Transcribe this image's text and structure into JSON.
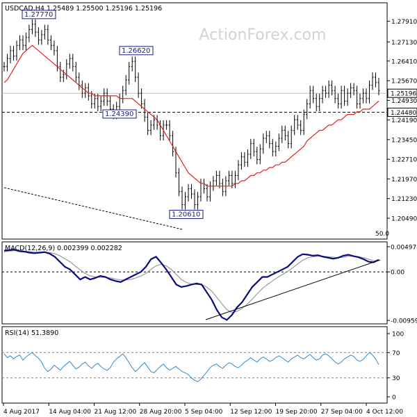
{
  "watermark": "ActionForex.com",
  "colors": {
    "price": "#000000",
    "ma": "#e02020",
    "macd": "#0a0a80",
    "signal": "#9a9a9a",
    "rsi": "#2c8ad8",
    "dashed": "#000000",
    "frame": "#000000",
    "watermark": "#d2d2d2"
  },
  "chart_data": [
    {
      "type": "line",
      "title": "USDCAD,H4 1.25489 1.25500 1.25196 1.25196",
      "ylim": [
        1.2049,
        1.2829
      ],
      "y_ticks": [
        "1.27910",
        "1.27130",
        "1.26410",
        "1.25670",
        "1.24930",
        "1.24190",
        "1.23450",
        "1.22710",
        "1.21970",
        "1.21230",
        "1.20490"
      ],
      "x_tick_labels": [
        "4 Aug 2017",
        "14 Aug 04:00",
        "21 Aug 12:00",
        "28 Aug 20:00",
        "5 Sep 04:00",
        "12 Sep 12:00",
        "19 Sep 20:00",
        "27 Sep 04:00",
        "4 Oct 12:00"
      ],
      "series": [
        {
          "values": [
            1.262,
            1.265,
            1.268,
            1.266,
            1.27,
            1.272,
            1.27,
            1.273,
            1.276,
            1.278,
            1.275,
            1.272,
            1.274,
            1.276,
            1.272,
            1.27,
            1.268,
            1.262,
            1.258,
            1.259,
            1.263,
            1.265,
            1.262,
            1.258,
            1.255,
            1.252,
            1.254,
            1.251,
            1.248,
            1.25,
            1.247,
            1.249,
            1.252,
            1.249,
            1.246,
            1.244,
            1.247,
            1.25,
            1.253,
            1.257,
            1.262,
            1.264,
            1.258,
            1.252,
            1.248,
            1.243,
            1.238,
            1.24,
            1.242,
            1.24,
            1.236,
            1.24,
            1.24,
            1.236,
            1.23,
            1.222,
            1.215,
            1.21,
            1.213,
            1.216,
            1.214,
            1.21,
            1.213,
            1.218,
            1.216,
            1.213,
            1.217,
            1.219,
            1.221,
            1.218,
            1.215,
            1.219,
            1.221,
            1.218,
            1.221,
            1.225,
            1.228,
            1.226,
            1.229,
            1.233,
            1.23,
            1.227,
            1.231,
            1.235,
            1.236,
            1.233,
            1.23,
            1.232,
            1.235,
            1.238,
            1.236,
            1.233,
            1.238,
            1.242,
            1.24,
            1.238,
            1.244,
            1.248,
            1.253,
            1.25,
            1.247,
            1.25,
            1.253,
            1.252,
            1.255,
            1.253,
            1.25,
            1.248,
            1.253,
            1.249,
            1.252,
            1.254,
            1.253,
            1.248,
            1.25,
            1.252,
            1.25,
            1.255,
            1.258,
            1.256,
            1.253
          ]
        },
        {
          "name": "50.0",
          "values": [
            1.256,
            1.257,
            1.259,
            1.261,
            1.263,
            1.265,
            1.267,
            1.268,
            1.269,
            1.27,
            1.269,
            1.268,
            1.267,
            1.266,
            1.265,
            1.264,
            1.263,
            1.262,
            1.261,
            1.26,
            1.259,
            1.258,
            1.257,
            1.256,
            1.255,
            1.254,
            1.253,
            1.252,
            1.252,
            1.251,
            1.251,
            1.251,
            1.251,
            1.251,
            1.251,
            1.251,
            1.251,
            1.25,
            1.25,
            1.25,
            1.25,
            1.25,
            1.249,
            1.248,
            1.247,
            1.246,
            1.245,
            1.244,
            1.243,
            1.242,
            1.24,
            1.238,
            1.236,
            1.234,
            1.232,
            1.23,
            1.228,
            1.226,
            1.224,
            1.222,
            1.221,
            1.22,
            1.219,
            1.218,
            1.218,
            1.217,
            1.217,
            1.217,
            1.217,
            1.217,
            1.217,
            1.217,
            1.217,
            1.217,
            1.218,
            1.218,
            1.219,
            1.219,
            1.22,
            1.221,
            1.221,
            1.222,
            1.222,
            1.223,
            1.223,
            1.224,
            1.224,
            1.225,
            1.225,
            1.226,
            1.226,
            1.227,
            1.228,
            1.229,
            1.23,
            1.231,
            1.232,
            1.234,
            1.235,
            1.236,
            1.237,
            1.238,
            1.238,
            1.239,
            1.24,
            1.24,
            1.241,
            1.242,
            1.242,
            1.243,
            1.244,
            1.244,
            1.244,
            1.245,
            1.245,
            1.246,
            1.246,
            1.246,
            1.247,
            1.248,
            1.249
          ]
        }
      ],
      "annotations": [
        {
          "label": "1.27770",
          "value": 1.2777
        },
        {
          "label": "1.26620",
          "value": 1.2662
        },
        {
          "label": "1.24390",
          "value": 1.2439
        },
        {
          "label": "1.20610",
          "value": 1.2061
        }
      ],
      "markers": [
        {
          "label": "1.25196",
          "value": 1.25196
        },
        {
          "label": "1.24480",
          "value": 1.2448
        }
      ],
      "grid": false
    },
    {
      "type": "line",
      "title": "MACD(12,26,9) 0.002399 0.002282",
      "ylim": [
        -0.009591,
        0.004974
      ],
      "y_ticks": [
        "0.004974",
        "0.00",
        "-0.009591"
      ],
      "series": [
        {
          "values": [
            0.0042,
            0.0043,
            0.0044,
            0.0041,
            0.004,
            0.0038,
            0.0037,
            0.0038,
            0.0039,
            0.0036,
            0.003,
            0.002,
            0.001,
            0.0005,
            -0.0005,
            -0.0015,
            -0.001,
            -0.0015,
            -0.0012,
            -0.0008,
            -0.001,
            -0.0015,
            -0.0018,
            -0.002,
            -0.0015,
            -0.001,
            -0.0005,
            0.0,
            0.001,
            0.0025,
            0.003,
            0.0018,
            0.0005,
            -0.001,
            -0.0025,
            -0.003,
            -0.0028,
            -0.0025,
            -0.0023,
            -0.0025,
            -0.004,
            -0.0055,
            -0.0075,
            -0.009,
            -0.0095,
            -0.0085,
            -0.007,
            -0.006,
            -0.0045,
            -0.003,
            -0.002,
            -0.001,
            -0.001,
            -0.0005,
            0.0,
            0.0005,
            0.001,
            0.002,
            0.003,
            0.0035,
            0.0034,
            0.0032,
            0.0033,
            0.003,
            0.0028,
            0.0026,
            0.0028,
            0.0032,
            0.0034,
            0.0031,
            0.0029,
            0.0025,
            0.002,
            0.0019,
            0.0024
          ]
        },
        {
          "values": [
            0.004,
            0.0041,
            0.0042,
            0.0042,
            0.0041,
            0.004,
            0.0039,
            0.0039,
            0.0039,
            0.0038,
            0.0036,
            0.0032,
            0.0026,
            0.002,
            0.0012,
            0.0004,
            -0.0003,
            -0.0008,
            -0.001,
            -0.0011,
            -0.0011,
            -0.0012,
            -0.0014,
            -0.0016,
            -0.0016,
            -0.0015,
            -0.0012,
            -0.0008,
            -0.0003,
            0.0005,
            0.0012,
            0.0015,
            0.0012,
            0.0005,
            -0.0005,
            -0.0015,
            -0.0021,
            -0.0024,
            -0.0025,
            -0.0025,
            -0.003,
            -0.0038,
            -0.005,
            -0.0063,
            -0.0075,
            -0.008,
            -0.0078,
            -0.0072,
            -0.0064,
            -0.0054,
            -0.0043,
            -0.0033,
            -0.0025,
            -0.0018,
            -0.0011,
            -0.0005,
            0.0001,
            0.0008,
            0.0016,
            0.0023,
            0.0028,
            0.003,
            0.0031,
            0.0031,
            0.003,
            0.0029,
            0.0028,
            0.0029,
            0.0031,
            0.0031,
            0.003,
            0.0028,
            0.0025,
            0.0022,
            0.0022
          ]
        }
      ]
    },
    {
      "type": "line",
      "title": "RSI(14) 51.3890",
      "ylim": [
        0,
        100
      ],
      "y_ticks": [
        "100",
        "70",
        "30",
        "0"
      ],
      "series": [
        {
          "values": [
            68,
            62,
            65,
            60,
            64,
            66,
            58,
            63,
            67,
            70,
            65,
            61,
            55,
            45,
            40,
            44,
            50,
            46,
            42,
            48,
            52,
            56,
            50,
            44,
            47,
            52,
            55,
            49,
            45,
            50,
            53,
            48,
            44,
            42,
            46,
            55,
            60,
            64,
            68,
            62,
            54,
            46,
            40,
            44,
            50,
            54,
            47,
            40,
            38,
            43,
            48,
            52,
            46,
            42,
            45,
            48,
            44,
            40,
            38,
            35,
            30,
            26,
            24,
            28,
            34,
            40,
            46,
            50,
            52,
            48,
            45,
            50,
            54,
            52,
            48,
            46,
            50,
            55,
            58,
            62,
            58,
            55,
            60,
            63,
            60,
            56,
            58,
            62,
            65,
            62,
            58,
            55,
            60,
            63,
            66,
            62,
            60,
            64,
            67,
            62,
            58,
            60,
            66,
            68,
            65,
            60,
            55,
            52,
            55,
            60,
            63,
            66,
            64,
            58,
            56,
            59,
            65,
            70,
            66,
            60,
            51
          ]
        }
      ]
    }
  ]
}
